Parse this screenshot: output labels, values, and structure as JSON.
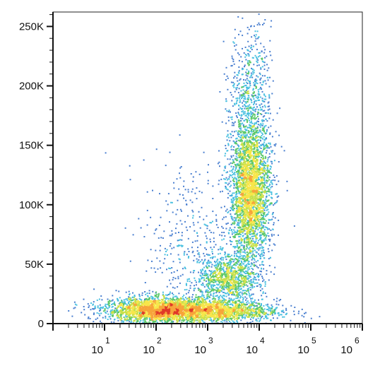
{
  "chart_data": {
    "type": "scatter",
    "title": "",
    "xlabel": "",
    "ylabel": "",
    "x_scale": "log",
    "xlim": [
      1,
      1000000
    ],
    "ylim": [
      0,
      262144
    ],
    "grid": false,
    "colormap": [
      "#3a4aa8",
      "#4a7fd0",
      "#49c0e0",
      "#5cc86a",
      "#c8e04a",
      "#f7e64a",
      "#f7a43a",
      "#e03a28"
    ],
    "y_ticks": [
      {
        "value": 0,
        "label": "0"
      },
      {
        "value": 50000,
        "label": "50K"
      },
      {
        "value": 100000,
        "label": "100K"
      },
      {
        "value": 150000,
        "label": "150K"
      },
      {
        "value": 200000,
        "label": "200K"
      },
      {
        "value": 250000,
        "label": "250K"
      }
    ],
    "x_ticks": [
      {
        "value": 10,
        "base": "10",
        "exp": "1"
      },
      {
        "value": 100,
        "base": "10",
        "exp": "2"
      },
      {
        "value": 1000,
        "base": "10",
        "exp": "3"
      },
      {
        "value": 10000,
        "base": "10",
        "exp": "4"
      },
      {
        "value": 100000,
        "base": "10",
        "exp": "5"
      },
      {
        "value": 1000000,
        "base": "10",
        "exp": "6"
      }
    ],
    "populations": [
      {
        "center_x": 120,
        "center_y": 12000,
        "spread_log_x": 0.55,
        "spread_y": 5500,
        "weight": 0.28
      },
      {
        "center_x": 1500,
        "center_y": 11000,
        "spread_log_x": 0.6,
        "spread_y": 4500,
        "weight": 0.16
      },
      {
        "center_x": 2400,
        "center_y": 38000,
        "spread_log_x": 0.28,
        "spread_y": 10000,
        "weight": 0.1
      },
      {
        "center_x": 6500,
        "center_y": 110000,
        "spread_log_x": 0.2,
        "spread_y": 30000,
        "weight": 0.34
      },
      {
        "center_x": 6500,
        "center_y": 190000,
        "spread_log_x": 0.2,
        "spread_y": 30000,
        "weight": 0.07
      },
      {
        "center_x": 500,
        "center_y": 60000,
        "spread_log_x": 0.5,
        "spread_y": 40000,
        "weight": 0.05
      }
    ]
  }
}
